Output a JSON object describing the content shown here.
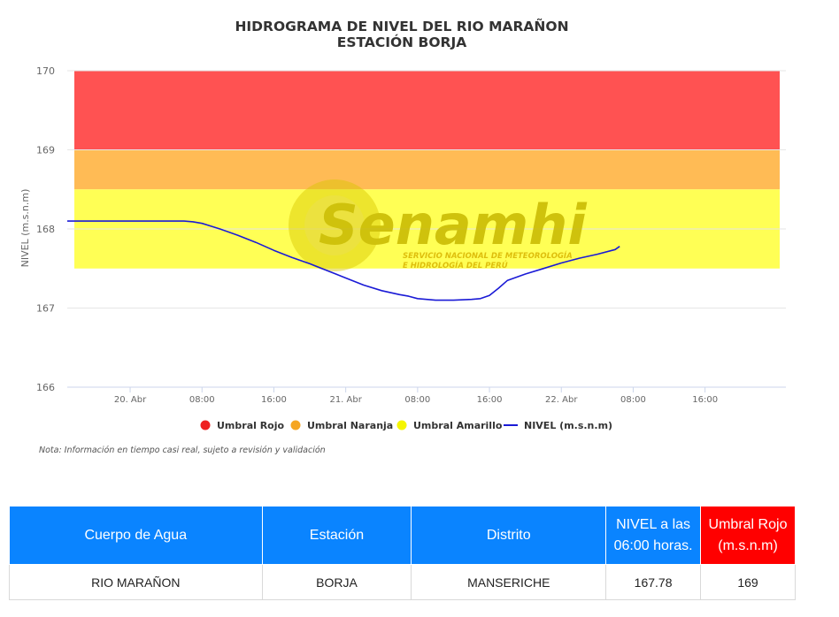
{
  "chart_data": {
    "type": "line",
    "title_lines": [
      "HIDROGRAMA DE NIVEL DEL RIO MARAÑON",
      "ESTACIÓN BORJA"
    ],
    "ylabel": "NIVEL (m.s.n.m)",
    "ylim": [
      166,
      170
    ],
    "yticks": [
      "166",
      "167",
      "168",
      "169",
      "170"
    ],
    "xticks": [
      "20. Abr",
      "08:00",
      "16:00",
      "21. Abr",
      "08:00",
      "16:00",
      "22. Abr",
      "08:00",
      "16:00"
    ],
    "x_tick_hours": [
      24,
      32,
      40,
      48,
      56,
      64,
      72,
      80,
      88
    ],
    "x_range_hours": [
      17,
      97
    ],
    "grid": "horizontal",
    "bands": [
      {
        "name": "Umbral Rojo",
        "from": 169,
        "to": 170,
        "color": "#ff5252"
      },
      {
        "name": "Umbral Naranja",
        "from": 168.5,
        "to": 169,
        "color": "#ffbb55"
      },
      {
        "name": "Umbral Amarillo",
        "from": 167.5,
        "to": 168.5,
        "color": "#ffff55"
      }
    ],
    "series": [
      {
        "name": "NIVEL (m.s.n.m)",
        "color": "#1a1ad6",
        "x_hours": [
          17,
          30,
          31,
          32,
          34,
          36,
          38,
          40,
          42,
          44,
          46,
          48,
          50,
          52,
          54,
          55,
          56,
          57,
          58,
          60,
          62,
          63,
          64,
          65,
          66,
          68,
          70,
          72,
          74,
          76,
          78,
          78.5
        ],
        "values": [
          168.1,
          168.1,
          168.09,
          168.07,
          168.0,
          167.92,
          167.83,
          167.73,
          167.64,
          167.56,
          167.47,
          167.38,
          167.29,
          167.22,
          167.17,
          167.15,
          167.12,
          167.11,
          167.1,
          167.1,
          167.11,
          167.12,
          167.16,
          167.25,
          167.35,
          167.43,
          167.5,
          167.57,
          167.63,
          167.68,
          167.74,
          167.78
        ]
      }
    ],
    "legend": {
      "placement": "bottom-center",
      "items": [
        {
          "label": "Umbral Rojo",
          "color": "#ee2222",
          "marker": "circle"
        },
        {
          "label": "Umbral Naranja",
          "color": "#f5a623",
          "marker": "circle"
        },
        {
          "label": "Umbral Amarillo",
          "color": "#f5f500",
          "marker": "circle"
        },
        {
          "label": "NIVEL (m.s.n.m)",
          "color": "#1a1ad6",
          "marker": "line"
        }
      ]
    },
    "note": "Nota: Información en tiempo casi real, sujeto a revisión y validación"
  },
  "watermark": {
    "name": "Senamhi",
    "subtitle_lines": [
      "SERVICIO NACIONAL DE METEOROLOGÍA",
      "E HIDROLOGÍA DEL PERÚ"
    ]
  },
  "table": {
    "headers": [
      "Cuerpo de Agua",
      "Estación",
      "Distrito",
      "NIVEL a las 06:00 horas.",
      "Umbral Rojo (m.s.n.m)"
    ],
    "header_colors": [
      "#0a84ff",
      "#0a84ff",
      "#0a84ff",
      "#0a84ff",
      "#ff0000"
    ],
    "row": [
      "RIO MARAÑON",
      "BORJA",
      "MANSERICHE",
      "167.78",
      "169"
    ]
  }
}
